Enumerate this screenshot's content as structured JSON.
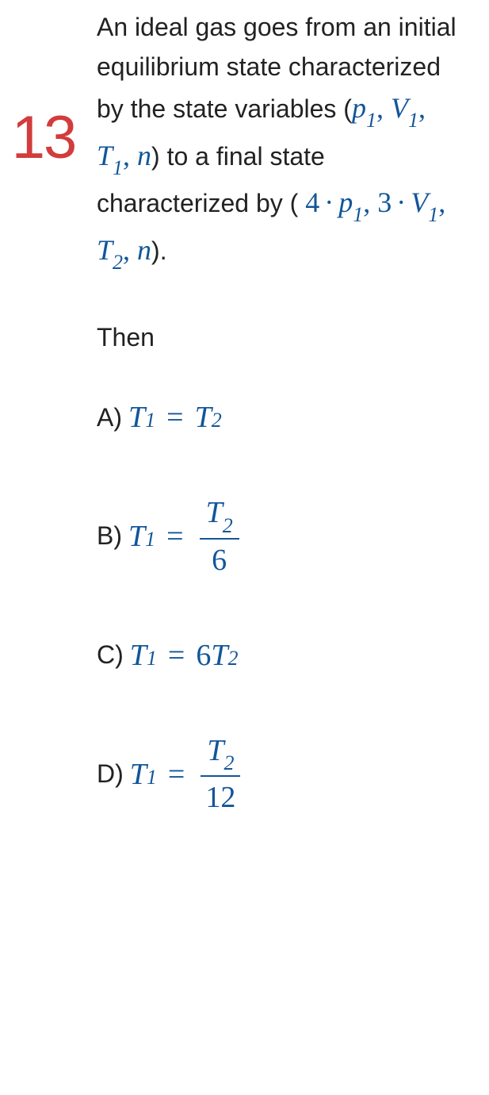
{
  "question": {
    "number": "13",
    "text_part1": "An ideal gas goes from an initial equilibrium state characterized by the state variables (",
    "var_p": "p",
    "var_V": "V",
    "var_T": "T",
    "var_n": "n",
    "sub1": "1",
    "sub2": "2",
    "text_part2": ") to a final state characterized by (",
    "coef4": "4",
    "coef3": "3",
    "text_part3": ").",
    "then": "Then"
  },
  "options": {
    "a_label": "A)",
    "b_label": "B)",
    "c_label": "C)",
    "d_label": "D)",
    "T": "T",
    "sub1": "1",
    "sub2": "2",
    "eq": "=",
    "six": "6",
    "twelve": "12",
    "denom6": "6"
  },
  "colors": {
    "question_number": "#d23c3c",
    "math": "#125699",
    "text": "#222222",
    "background": "#ffffff"
  },
  "typography": {
    "body_fontsize": 32,
    "number_fontsize": 76,
    "math_fontsize": 38,
    "subscript_fontsize": 26
  }
}
